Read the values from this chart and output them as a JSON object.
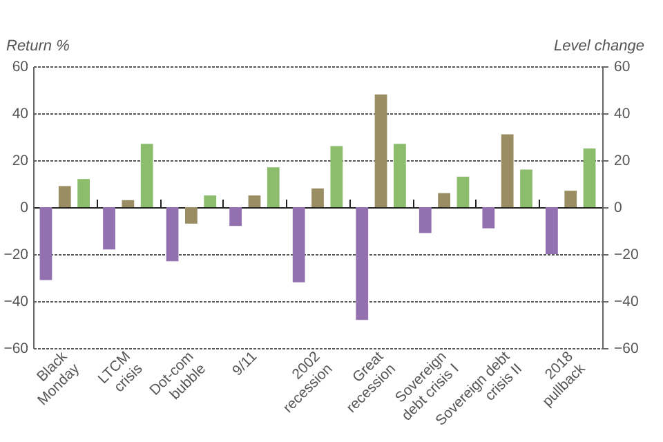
{
  "chart_data": {
    "type": "bar",
    "ylabel": "Return %",
    "y2label": "Level change",
    "categories": [
      "Black Monday",
      "LTCM crisis",
      "Dot-com bubble",
      "9/11",
      "2002 recession",
      "Great recession",
      "Sovereign debt crisis I",
      "Sovereign debt crisis II",
      "2018 pullback"
    ],
    "series": [
      {
        "color": "#9370b0",
        "values": [
          -31,
          -18,
          -23,
          -8,
          -32,
          -48,
          -11,
          -9,
          -20
        ]
      },
      {
        "color": "#9a8d64",
        "values": [
          9,
          3,
          -7,
          5,
          8,
          48,
          6,
          31,
          7
        ]
      },
      {
        "color": "#8cbd6c",
        "values": [
          12,
          27,
          5,
          17,
          26,
          27,
          13,
          16,
          25
        ]
      }
    ],
    "ylim": [
      -60,
      60
    ],
    "yticks": [
      -60,
      -40,
      -20,
      0,
      20,
      40,
      60
    ],
    "y2lim": [
      -60,
      60
    ],
    "y2ticks": [
      -60,
      -40,
      -20,
      0,
      20,
      40,
      60
    ],
    "grid": "y"
  }
}
